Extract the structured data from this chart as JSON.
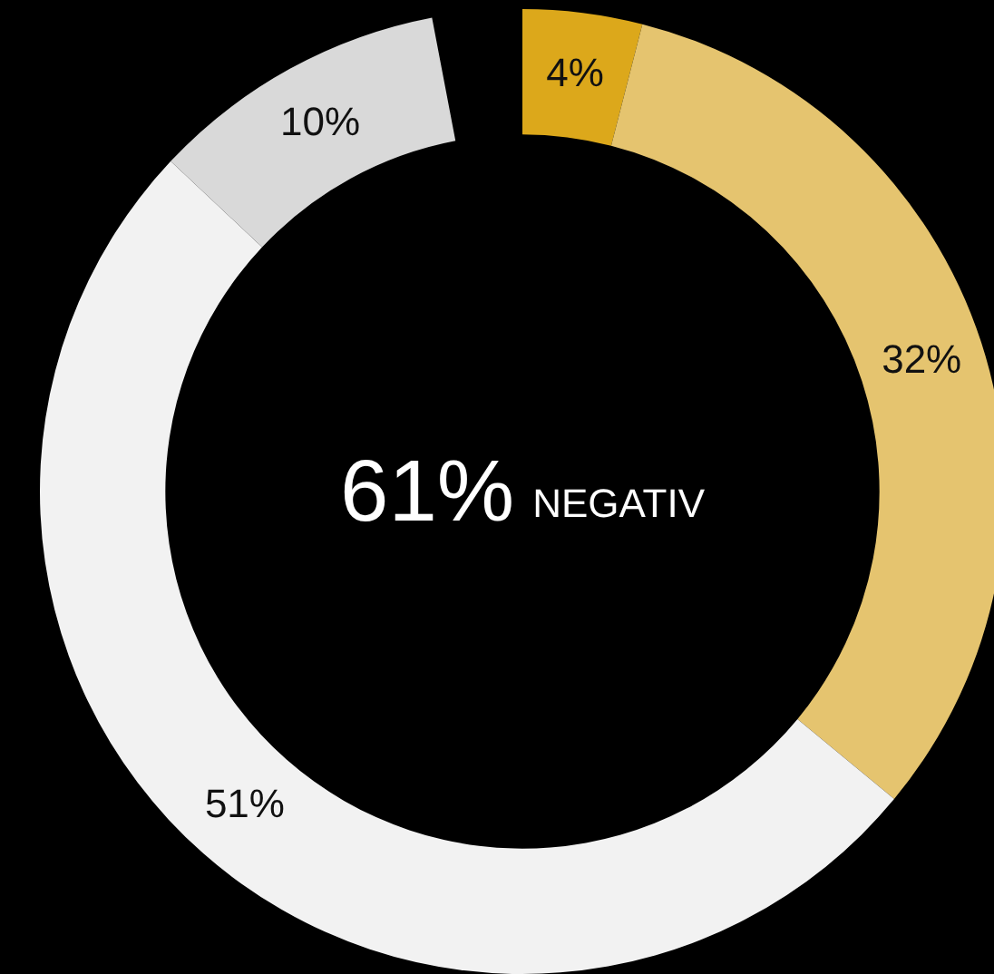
{
  "chart_data": {
    "type": "donut",
    "categories": [
      null,
      null,
      null,
      null
    ],
    "values": [
      4,
      32,
      51,
      10
    ],
    "colors": [
      "#dca81b",
      "#e5c46f",
      "#f2f2f2",
      "#d9d9d9"
    ],
    "value_labels": [
      "4%",
      "32%",
      "51%",
      "10%"
    ],
    "annotations": [
      "61%",
      "NEGATIV"
    ],
    "legend": false
  }
}
